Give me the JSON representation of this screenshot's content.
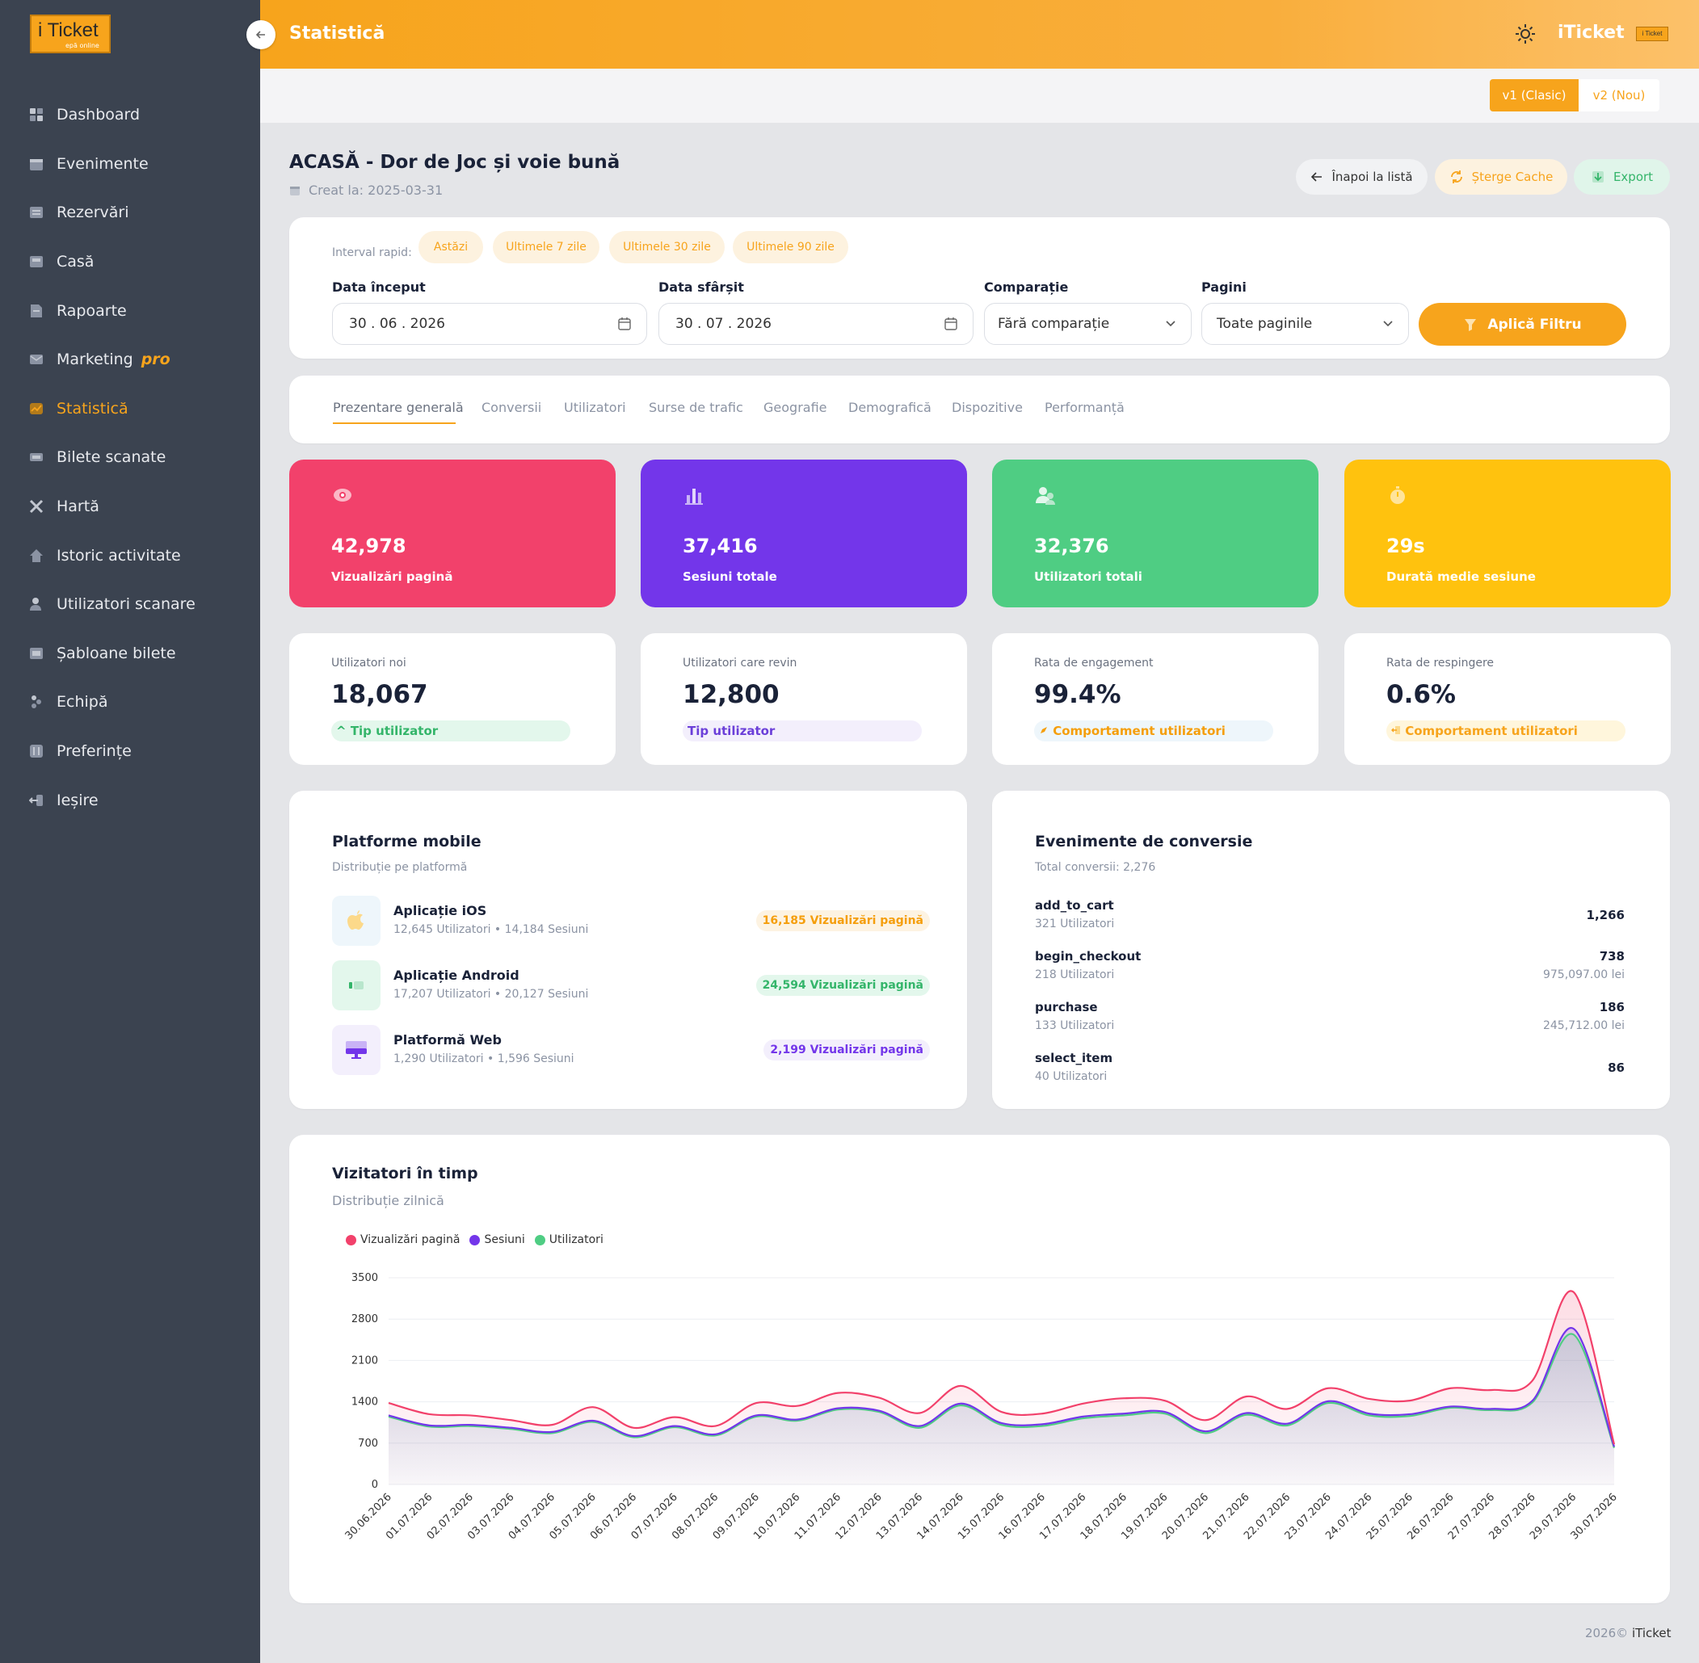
{
  "app": {
    "logo_text": "i Ticket",
    "logo_sub": "epă online",
    "brand": "iTicket",
    "brand_badge": "i Ticket",
    "page_title": "Statistică",
    "colors": {
      "accent": "#f7a41c",
      "sidebar": "#3b4350",
      "background": "#e4e5e8"
    }
  },
  "sidebar": {
    "items": [
      {
        "label": "Dashboard",
        "icon": "dashboard-icon"
      },
      {
        "label": "Evenimente",
        "icon": "calendar-icon"
      },
      {
        "label": "Rezervări",
        "icon": "list-icon"
      },
      {
        "label": "Casă",
        "icon": "register-icon"
      },
      {
        "label": "Rapoarte",
        "icon": "report-icon"
      },
      {
        "label": "Marketing",
        "icon": "mail-icon",
        "badge": "pro"
      },
      {
        "label": "Statistică",
        "icon": "chart-icon",
        "active": true
      },
      {
        "label": "Bilete scanate",
        "icon": "ticket-icon"
      },
      {
        "label": "Hartă",
        "icon": "map-icon"
      },
      {
        "label": "Istoric activitate",
        "icon": "history-icon"
      },
      {
        "label": "Utilizatori scanare",
        "icon": "user-icon"
      },
      {
        "label": "Șabloane bilete",
        "icon": "template-icon"
      },
      {
        "label": "Echipă",
        "icon": "team-icon"
      },
      {
        "label": "Preferințe",
        "icon": "sliders-icon"
      },
      {
        "label": "Ieșire",
        "icon": "logout-icon"
      }
    ]
  },
  "version": {
    "v1": "v1 (Clasic)",
    "v2": "v2 (Nou)"
  },
  "header": {
    "title": "ACASĂ - Dor de Joc și voie bună",
    "created": "Creat la: 2025-03-31",
    "back_label": "Înapoi la listă",
    "cache_label": "Șterge Cache",
    "export_label": "Export"
  },
  "filters": {
    "quick_label": "Interval rapid:",
    "quick": [
      "Astăzi",
      "Ultimele 7 zile",
      "Ultimele 30 zile",
      "Ultimele 90 zile"
    ],
    "start_label": "Data început",
    "start_value": "30 . 06 . 2026",
    "end_label": "Data sfârșit",
    "end_value": "30 . 07 . 2026",
    "comparison_label": "Comparație",
    "comparison_value": "Fără comparație",
    "pages_label": "Pagini",
    "pages_value": "Toate paginile",
    "apply_label": "Aplică Filtru"
  },
  "tabs": [
    "Prezentare generală",
    "Conversii",
    "Utilizatori",
    "Surse de trafic",
    "Geografie",
    "Demografică",
    "Dispozitive",
    "Performanță"
  ],
  "stats": [
    {
      "value": "42,978",
      "label": "Vizualizări pagină",
      "color": "#f2416b",
      "icon": "eye-icon"
    },
    {
      "value": "37,416",
      "label": "Sesiuni totale",
      "color": "#7336ea",
      "icon": "bar-chart-icon"
    },
    {
      "value": "32,376",
      "label": "Utilizatori totali",
      "color": "#4fcd83",
      "icon": "users-icon"
    },
    {
      "value": "29s",
      "label": "Durată medie sesiune",
      "color": "#ffc20e",
      "icon": "stopwatch-icon"
    }
  ],
  "metrics": [
    {
      "title": "Utilizatori noi",
      "value": "18,067",
      "badge": "Tip utilizator",
      "badge_icon": "arrow-up-icon",
      "badge_color": "#34b56a",
      "badge_bg": "#e3f7ec"
    },
    {
      "title": "Utilizatori care revin",
      "value": "12,800",
      "badge": "Tip utilizator",
      "badge_icon": "",
      "badge_color": "#6b3fd9",
      "badge_bg": "#f3effc"
    },
    {
      "title": "Rata de engagement",
      "value": "99.4%",
      "badge": "Comportament utilizatori",
      "badge_icon": "rocket-icon",
      "badge_color": "#f59e0b",
      "badge_bg": "#eef6fb"
    },
    {
      "title": "Rata de respingere",
      "value": "0.6%",
      "badge": "Comportament utilizatori",
      "badge_icon": "exit-icon",
      "badge_color": "#f7a41c",
      "badge_bg": "#fff6dc"
    }
  ],
  "platforms": {
    "title": "Platforme mobile",
    "subtitle": "Distribuție pe platformă",
    "items": [
      {
        "name": "Aplicație iOS",
        "meta": "12,645 Utilizatori • 14,184 Sesiuni",
        "badge": "16,185 Vizualizări pagină",
        "color": "#f59e0b",
        "bg": "#fdf3e2",
        "icon_bg": "#eef6fb",
        "icon": "apple-icon"
      },
      {
        "name": "Aplicație Android",
        "meta": "17,207 Utilizatori • 20,127 Sesiuni",
        "badge": "24,594 Vizualizări pagină",
        "color": "#34b56a",
        "bg": "#e3f7ec",
        "icon_bg": "#e3f7ec",
        "icon": "android-icon"
      },
      {
        "name": "Platformă Web",
        "meta": "1,290 Utilizatori • 1,596 Sesiuni",
        "badge": "2,199 Vizualizări pagină",
        "color": "#7336ea",
        "bg": "#f3effc",
        "icon_bg": "#f3effc",
        "icon": "monitor-icon"
      }
    ]
  },
  "conversions": {
    "title": "Evenimente de conversie",
    "subtitle": "Total conversii: 2,276",
    "items": [
      {
        "name": "add_to_cart",
        "users": "321 Utilizatori",
        "count": "1,266",
        "revenue": ""
      },
      {
        "name": "begin_checkout",
        "users": "218 Utilizatori",
        "count": "738",
        "revenue": "975,097.00 lei"
      },
      {
        "name": "purchase",
        "users": "133 Utilizatori",
        "count": "186",
        "revenue": "245,712.00 lei"
      },
      {
        "name": "select_item",
        "users": "40 Utilizatori",
        "count": "86",
        "revenue": ""
      }
    ]
  },
  "visitors": {
    "title": "Vizitatori în timp",
    "subtitle": "Distribuție zilnică"
  },
  "chart_data": {
    "type": "area",
    "title": "Vizitatori în timp",
    "subtitle": "Distribuție zilnică",
    "x": [
      "30.06.2026",
      "01.07.2026",
      "02.07.2026",
      "03.07.2026",
      "04.07.2026",
      "05.07.2026",
      "06.07.2026",
      "07.07.2026",
      "08.07.2026",
      "09.07.2026",
      "10.07.2026",
      "11.07.2026",
      "12.07.2026",
      "13.07.2026",
      "14.07.2026",
      "15.07.2026",
      "16.07.2026",
      "17.07.2026",
      "18.07.2026",
      "19.07.2026",
      "20.07.2026",
      "21.07.2026",
      "22.07.2026",
      "23.07.2026",
      "24.07.2026",
      "25.07.2026",
      "26.07.2026",
      "27.07.2026",
      "28.07.2026",
      "29.07.2026",
      "30.07.2026"
    ],
    "ylim": [
      0,
      3500
    ],
    "yticks": [
      0,
      700,
      1400,
      2100,
      2800,
      3500
    ],
    "legend": "top-left",
    "grid": true,
    "series": [
      {
        "name": "Vizualizări pagină",
        "color": "#f2416b",
        "values": [
          1380,
          1190,
          1170,
          1090,
          1010,
          1310,
          960,
          1140,
          990,
          1380,
          1330,
          1550,
          1470,
          1210,
          1670,
          1230,
          1200,
          1370,
          1460,
          1420,
          1090,
          1490,
          1280,
          1630,
          1450,
          1420,
          1630,
          1600,
          1760,
          3260,
          680
        ]
      },
      {
        "name": "Sesiuni",
        "color": "#7336ea",
        "values": [
          1170,
          1000,
          1010,
          960,
          890,
          1080,
          820,
          990,
          850,
          1170,
          1100,
          1290,
          1250,
          990,
          1370,
          1040,
          1020,
          1150,
          1200,
          1230,
          900,
          1210,
          1030,
          1410,
          1200,
          1190,
          1320,
          1280,
          1420,
          2640,
          640
        ]
      },
      {
        "name": "Utilizatori",
        "color": "#4fcd83",
        "values": [
          1150,
          980,
          990,
          940,
          870,
          1060,
          800,
          970,
          830,
          1150,
          1080,
          1270,
          1230,
          960,
          1340,
          1010,
          990,
          1120,
          1170,
          1200,
          870,
          1180,
          1000,
          1380,
          1170,
          1160,
          1300,
          1260,
          1390,
          2540,
          620
        ]
      }
    ]
  },
  "footer": {
    "year": "2026©",
    "brand": "iTicket"
  }
}
